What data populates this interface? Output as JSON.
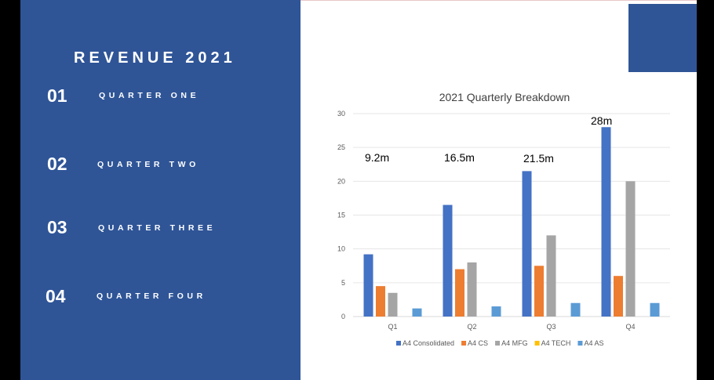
{
  "slide": {
    "title": "REVENUE 2021",
    "panel_color": "#2f5597",
    "quarters": [
      {
        "number": "01",
        "label": "QUARTER ONE"
      },
      {
        "number": "02",
        "label": "QUARTER TWO"
      },
      {
        "number": "03",
        "label": "QUARTER THREE"
      },
      {
        "number": "04",
        "label": "QUARTER FOUR"
      }
    ]
  },
  "chart_data": {
    "type": "bar",
    "title": "2021 Quarterly Breakdown",
    "categories": [
      "Q1",
      "Q2",
      "Q3",
      "Q4"
    ],
    "ylim": [
      0,
      30
    ],
    "yticks": [
      0,
      5,
      10,
      15,
      20,
      25,
      30
    ],
    "grid": true,
    "legend_position": "bottom",
    "series": [
      {
        "name": "A4 Consolidated",
        "color": "#4472c4",
        "values": [
          9.2,
          16.5,
          21.5,
          28
        ]
      },
      {
        "name": "A4 CS",
        "color": "#ed7d31",
        "values": [
          4.5,
          7,
          7.5,
          6
        ]
      },
      {
        "name": "A4 MFG",
        "color": "#a5a5a5",
        "values": [
          3.5,
          8,
          12,
          20
        ]
      },
      {
        "name": "A4 TECH",
        "color": "#ffc000",
        "values": [
          0,
          0,
          0,
          0
        ]
      },
      {
        "name": "A4 AS",
        "color": "#5b9bd5",
        "values": [
          1.2,
          1.5,
          2,
          2
        ]
      }
    ],
    "annotations": [
      "9.2m",
      "16.5m",
      "21.5m",
      "28m"
    ]
  }
}
